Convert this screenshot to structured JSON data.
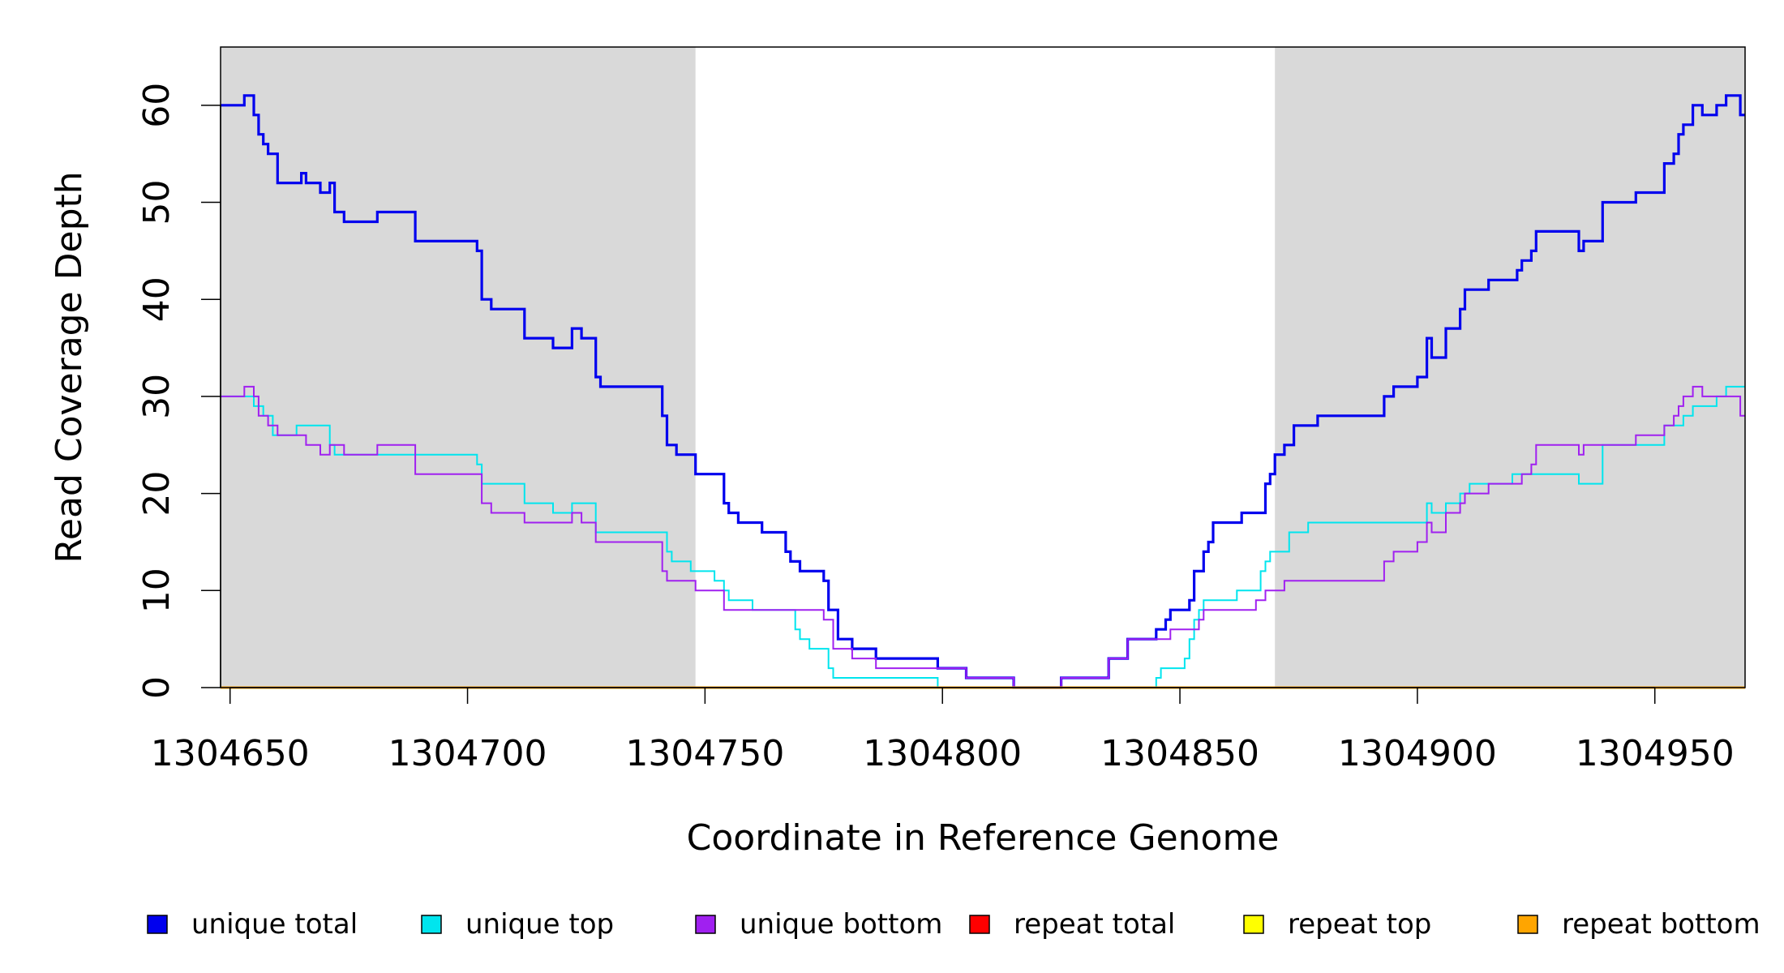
{
  "chart_data": {
    "type": "line",
    "step": true,
    "xlabel": "Coordinate in Reference Genome",
    "ylabel": "Read Coverage Depth",
    "xlim": [
      1304648,
      1304969
    ],
    "ylim": [
      0,
      66
    ],
    "x_ticks": [
      1304650,
      1304700,
      1304750,
      1304800,
      1304850,
      1304900,
      1304950
    ],
    "x_tick_labels": [
      "1304650",
      "1304700",
      "1304750",
      "1304800",
      "1304850",
      "1304900",
      "1304950"
    ],
    "y_ticks": [
      0,
      10,
      20,
      30,
      40,
      50,
      60
    ],
    "y_tick_labels": [
      "0",
      "10",
      "20",
      "30",
      "40",
      "50",
      "60"
    ],
    "shaded_regions": [
      [
        1304648,
        1304748
      ],
      [
        1304870,
        1304969
      ]
    ],
    "shade_color": "#d9d9d9",
    "grid": false,
    "legend_position": "bottom",
    "series": [
      {
        "name": "unique total",
        "color": "#0000ee",
        "points": [
          [
            1304648,
            60
          ],
          [
            1304651,
            60
          ],
          [
            1304653,
            61
          ],
          [
            1304655,
            59
          ],
          [
            1304656,
            57
          ],
          [
            1304657,
            56
          ],
          [
            1304658,
            55
          ],
          [
            1304660,
            52
          ],
          [
            1304665,
            53
          ],
          [
            1304666,
            52
          ],
          [
            1304669,
            51
          ],
          [
            1304671,
            52
          ],
          [
            1304672,
            49
          ],
          [
            1304674,
            48
          ],
          [
            1304681,
            49
          ],
          [
            1304689,
            46
          ],
          [
            1304702,
            45
          ],
          [
            1304703,
            40
          ],
          [
            1304705,
            39
          ],
          [
            1304712,
            36
          ],
          [
            1304718,
            35
          ],
          [
            1304722,
            37
          ],
          [
            1304724,
            36
          ],
          [
            1304727,
            32
          ],
          [
            1304728,
            31
          ],
          [
            1304741,
            28
          ],
          [
            1304742,
            25
          ],
          [
            1304744,
            24
          ],
          [
            1304748,
            22
          ],
          [
            1304754,
            19
          ],
          [
            1304755,
            18
          ],
          [
            1304757,
            17
          ],
          [
            1304762,
            16
          ],
          [
            1304767,
            14
          ],
          [
            1304768,
            13
          ],
          [
            1304770,
            12
          ],
          [
            1304775,
            11
          ],
          [
            1304776,
            8
          ],
          [
            1304778,
            5
          ],
          [
            1304781,
            4
          ],
          [
            1304786,
            3
          ],
          [
            1304799,
            2
          ],
          [
            1304805,
            1
          ],
          [
            1304815,
            0
          ],
          [
            1304825,
            1
          ],
          [
            1304835,
            3
          ],
          [
            1304839,
            5
          ],
          [
            1304845,
            6
          ],
          [
            1304847,
            7
          ],
          [
            1304848,
            8
          ],
          [
            1304852,
            9
          ],
          [
            1304853,
            12
          ],
          [
            1304855,
            14
          ],
          [
            1304856,
            15
          ],
          [
            1304857,
            17
          ],
          [
            1304863,
            18
          ],
          [
            1304868,
            21
          ],
          [
            1304869,
            22
          ],
          [
            1304870,
            24
          ],
          [
            1304872,
            25
          ],
          [
            1304874,
            27
          ],
          [
            1304879,
            28
          ],
          [
            1304893,
            30
          ],
          [
            1304895,
            31
          ],
          [
            1304900,
            32
          ],
          [
            1304902,
            36
          ],
          [
            1304903,
            34
          ],
          [
            1304906,
            37
          ],
          [
            1304909,
            39
          ],
          [
            1304910,
            41
          ],
          [
            1304915,
            42
          ],
          [
            1304921,
            43
          ],
          [
            1304922,
            44
          ],
          [
            1304924,
            45
          ],
          [
            1304925,
            47
          ],
          [
            1304934,
            45
          ],
          [
            1304935,
            46
          ],
          [
            1304939,
            50
          ],
          [
            1304946,
            51
          ],
          [
            1304952,
            54
          ],
          [
            1304954,
            55
          ],
          [
            1304955,
            57
          ],
          [
            1304956,
            58
          ],
          [
            1304958,
            60
          ],
          [
            1304960,
            59
          ],
          [
            1304963,
            60
          ],
          [
            1304965,
            61
          ],
          [
            1304968,
            59
          ],
          [
            1304969,
            59
          ]
        ]
      },
      {
        "name": "unique top",
        "color": "#00e5ee",
        "points": [
          [
            1304648,
            30
          ],
          [
            1304654,
            30
          ],
          [
            1304655,
            29
          ],
          [
            1304657,
            28
          ],
          [
            1304659,
            26
          ],
          [
            1304664,
            27
          ],
          [
            1304671,
            25
          ],
          [
            1304672,
            24
          ],
          [
            1304674,
            24
          ],
          [
            1304702,
            23
          ],
          [
            1304703,
            21
          ],
          [
            1304712,
            19
          ],
          [
            1304718,
            18
          ],
          [
            1304722,
            19
          ],
          [
            1304727,
            16
          ],
          [
            1304742,
            14
          ],
          [
            1304743,
            13
          ],
          [
            1304747,
            12
          ],
          [
            1304752,
            11
          ],
          [
            1304754,
            10
          ],
          [
            1304755,
            9
          ],
          [
            1304760,
            8
          ],
          [
            1304769,
            6
          ],
          [
            1304770,
            5
          ],
          [
            1304772,
            4
          ],
          [
            1304776,
            2
          ],
          [
            1304777,
            1
          ],
          [
            1304799,
            0
          ],
          [
            1304845,
            1
          ],
          [
            1304846,
            2
          ],
          [
            1304851,
            3
          ],
          [
            1304852,
            5
          ],
          [
            1304853,
            7
          ],
          [
            1304854,
            8
          ],
          [
            1304855,
            9
          ],
          [
            1304862,
            10
          ],
          [
            1304867,
            12
          ],
          [
            1304868,
            13
          ],
          [
            1304869,
            14
          ],
          [
            1304873,
            16
          ],
          [
            1304877,
            17
          ],
          [
            1304902,
            19
          ],
          [
            1304903,
            18
          ],
          [
            1304906,
            19
          ],
          [
            1304909,
            20
          ],
          [
            1304911,
            21
          ],
          [
            1304920,
            22
          ],
          [
            1304934,
            21
          ],
          [
            1304939,
            25
          ],
          [
            1304944,
            25
          ],
          [
            1304952,
            27
          ],
          [
            1304956,
            28
          ],
          [
            1304958,
            29
          ],
          [
            1304963,
            30
          ],
          [
            1304965,
            31
          ],
          [
            1304969,
            31
          ]
        ]
      },
      {
        "name": "unique bottom",
        "color": "#a020f0",
        "points": [
          [
            1304648,
            30
          ],
          [
            1304651,
            30
          ],
          [
            1304653,
            31
          ],
          [
            1304655,
            30
          ],
          [
            1304656,
            28
          ],
          [
            1304658,
            27
          ],
          [
            1304660,
            26
          ],
          [
            1304665,
            26
          ],
          [
            1304666,
            25
          ],
          [
            1304669,
            24
          ],
          [
            1304671,
            25
          ],
          [
            1304674,
            24
          ],
          [
            1304681,
            25
          ],
          [
            1304689,
            22
          ],
          [
            1304702,
            22
          ],
          [
            1304703,
            19
          ],
          [
            1304705,
            18
          ],
          [
            1304712,
            17
          ],
          [
            1304722,
            18
          ],
          [
            1304724,
            17
          ],
          [
            1304727,
            15
          ],
          [
            1304741,
            12
          ],
          [
            1304742,
            11
          ],
          [
            1304748,
            10
          ],
          [
            1304754,
            8
          ],
          [
            1304775,
            7
          ],
          [
            1304777,
            4
          ],
          [
            1304781,
            3
          ],
          [
            1304786,
            2
          ],
          [
            1304799,
            2
          ],
          [
            1304805,
            1
          ],
          [
            1304815,
            0
          ],
          [
            1304825,
            1
          ],
          [
            1304835,
            3
          ],
          [
            1304839,
            5
          ],
          [
            1304845,
            5
          ],
          [
            1304848,
            6
          ],
          [
            1304854,
            7
          ],
          [
            1304855,
            8
          ],
          [
            1304866,
            9
          ],
          [
            1304868,
            10
          ],
          [
            1304872,
            11
          ],
          [
            1304893,
            13
          ],
          [
            1304895,
            14
          ],
          [
            1304900,
            15
          ],
          [
            1304902,
            17
          ],
          [
            1304903,
            16
          ],
          [
            1304906,
            18
          ],
          [
            1304909,
            19
          ],
          [
            1304910,
            20
          ],
          [
            1304915,
            21
          ],
          [
            1304922,
            22
          ],
          [
            1304924,
            23
          ],
          [
            1304925,
            25
          ],
          [
            1304934,
            24
          ],
          [
            1304935,
            25
          ],
          [
            1304946,
            26
          ],
          [
            1304952,
            27
          ],
          [
            1304954,
            28
          ],
          [
            1304955,
            29
          ],
          [
            1304956,
            30
          ],
          [
            1304958,
            31
          ],
          [
            1304960,
            30
          ],
          [
            1304968,
            28
          ],
          [
            1304969,
            28
          ]
        ]
      },
      {
        "name": "repeat total",
        "color": "#ff0000",
        "points": [
          [
            1304648,
            0
          ],
          [
            1304969,
            0
          ]
        ]
      },
      {
        "name": "repeat top",
        "color": "#ffff00",
        "points": [
          [
            1304648,
            0
          ],
          [
            1304969,
            0
          ]
        ]
      },
      {
        "name": "repeat bottom",
        "color": "#ffa500",
        "points": [
          [
            1304648,
            0
          ],
          [
            1304969,
            0
          ]
        ]
      }
    ],
    "legend": [
      {
        "label": "unique total",
        "color": "#0000ee"
      },
      {
        "label": "unique top",
        "color": "#00e5ee"
      },
      {
        "label": "unique bottom",
        "color": "#a020f0"
      },
      {
        "label": "repeat total",
        "color": "#ff0000"
      },
      {
        "label": "repeat top",
        "color": "#ffff00"
      },
      {
        "label": "repeat bottom",
        "color": "#ffa500"
      }
    ]
  }
}
